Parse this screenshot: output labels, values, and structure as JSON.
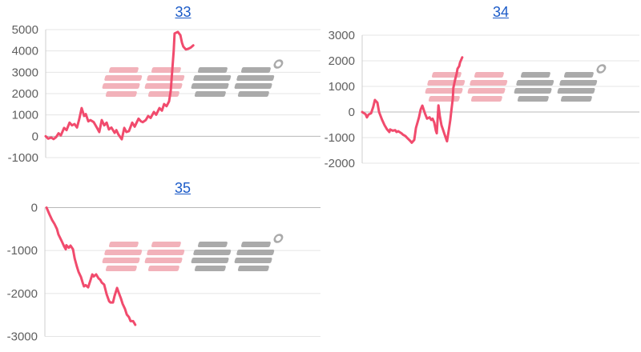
{
  "watermark": {
    "text": "みんレポ",
    "text_pink": "みん",
    "text_gray": "レポ"
  },
  "colors": {
    "line": "#f14b6d",
    "title_link": "#1a5ac8",
    "axis_label": "#5f5f5f",
    "gridline": "#e4e4e4",
    "zero_line": "#b8b8b8",
    "axis_line": "#cfcfcf",
    "watermark_pink": "#f2aeb7",
    "watermark_gray": "#a6a6a6",
    "background": "#ffffff"
  },
  "chart_data": [
    {
      "type": "line",
      "title": "33",
      "xlabel": "",
      "ylabel": "",
      "ylim": [
        -1000,
        5000
      ],
      "yticks": [
        5000,
        4000,
        3000,
        2000,
        1000,
        0,
        -1000
      ],
      "grid": true,
      "x_axis_labels": "none",
      "x_note": "x values normalized 0-1 across plot width; series ends at ~53% of axis",
      "series": [
        {
          "name": "payout-line",
          "points": [
            [
              0,
              0
            ],
            [
              0.009,
              -110
            ],
            [
              0.02,
              -60
            ],
            [
              0.029,
              -130
            ],
            [
              0.038,
              -40
            ],
            [
              0.047,
              140
            ],
            [
              0.055,
              40
            ],
            [
              0.067,
              390
            ],
            [
              0.076,
              290
            ],
            [
              0.087,
              640
            ],
            [
              0.096,
              510
            ],
            [
              0.105,
              570
            ],
            [
              0.114,
              410
            ],
            [
              0.122,
              790
            ],
            [
              0.131,
              1320
            ],
            [
              0.14,
              950
            ],
            [
              0.146,
              1040
            ],
            [
              0.155,
              700
            ],
            [
              0.163,
              760
            ],
            [
              0.175,
              660
            ],
            [
              0.187,
              390
            ],
            [
              0.195,
              200
            ],
            [
              0.204,
              760
            ],
            [
              0.213,
              510
            ],
            [
              0.222,
              640
            ],
            [
              0.23,
              320
            ],
            [
              0.239,
              410
            ],
            [
              0.251,
              160
            ],
            [
              0.257,
              290
            ],
            [
              0.265,
              75
            ],
            [
              0.277,
              -140
            ],
            [
              0.286,
              390
            ],
            [
              0.294,
              200
            ],
            [
              0.303,
              240
            ],
            [
              0.315,
              640
            ],
            [
              0.324,
              450
            ],
            [
              0.338,
              825
            ],
            [
              0.347,
              700
            ],
            [
              0.353,
              660
            ],
            [
              0.364,
              760
            ],
            [
              0.373,
              950
            ],
            [
              0.382,
              860
            ],
            [
              0.394,
              1140
            ],
            [
              0.402,
              1010
            ],
            [
              0.414,
              1320
            ],
            [
              0.423,
              1200
            ],
            [
              0.431,
              1510
            ],
            [
              0.44,
              1410
            ],
            [
              0.449,
              1635
            ],
            [
              0.455,
              2140
            ],
            [
              0.466,
              4010
            ],
            [
              0.469,
              4820
            ],
            [
              0.481,
              4890
            ],
            [
              0.49,
              4740
            ],
            [
              0.496,
              4390
            ],
            [
              0.501,
              4200
            ],
            [
              0.51,
              4070
            ],
            [
              0.519,
              4100
            ],
            [
              0.528,
              4160
            ],
            [
              0.537,
              4260
            ]
          ]
        }
      ]
    },
    {
      "type": "line",
      "title": "34",
      "xlabel": "",
      "ylabel": "",
      "ylim": [
        -2000,
        3000
      ],
      "yticks": [
        3000,
        2000,
        1000,
        0,
        -1000,
        -2000
      ],
      "grid": true,
      "x_axis_labels": "none",
      "x_note": "x values normalized 0-1 across plot width; series ends at ~36% of axis",
      "series": [
        {
          "name": "payout-line",
          "points": [
            [
              0,
              0
            ],
            [
              0.012,
              -85
            ],
            [
              0.017,
              -210
            ],
            [
              0.023,
              -100
            ],
            [
              0.032,
              -50
            ],
            [
              0.04,
              200
            ],
            [
              0.046,
              470
            ],
            [
              0.055,
              365
            ],
            [
              0.061,
              0
            ],
            [
              0.072,
              -310
            ],
            [
              0.081,
              -520
            ],
            [
              0.09,
              -680
            ],
            [
              0.098,
              -780
            ],
            [
              0.101,
              -680
            ],
            [
              0.11,
              -730
            ],
            [
              0.119,
              -710
            ],
            [
              0.124,
              -780
            ],
            [
              0.13,
              -750
            ],
            [
              0.142,
              -830
            ],
            [
              0.147,
              -885
            ],
            [
              0.156,
              -940
            ],
            [
              0.165,
              -1040
            ],
            [
              0.173,
              -1125
            ],
            [
              0.179,
              -1200
            ],
            [
              0.188,
              -1090
            ],
            [
              0.194,
              -625
            ],
            [
              0.205,
              -210
            ],
            [
              0.211,
              100
            ],
            [
              0.217,
              250
            ],
            [
              0.223,
              50
            ],
            [
              0.228,
              -100
            ],
            [
              0.234,
              -260
            ],
            [
              0.243,
              -210
            ],
            [
              0.249,
              -310
            ],
            [
              0.254,
              -260
            ],
            [
              0.26,
              -415
            ],
            [
              0.266,
              -730
            ],
            [
              0.269,
              -830
            ],
            [
              0.275,
              260
            ],
            [
              0.28,
              -155
            ],
            [
              0.286,
              -520
            ],
            [
              0.292,
              -700
            ],
            [
              0.298,
              -900
            ],
            [
              0.303,
              -1050
            ],
            [
              0.306,
              -1145
            ],
            [
              0.312,
              -730
            ],
            [
              0.318,
              -310
            ],
            [
              0.321,
              0
            ],
            [
              0.327,
              520
            ],
            [
              0.329,
              940
            ],
            [
              0.335,
              1250
            ],
            [
              0.341,
              1510
            ],
            [
              0.344,
              1690
            ],
            [
              0.35,
              1790
            ],
            [
              0.353,
              1930
            ],
            [
              0.361,
              2135
            ]
          ]
        }
      ]
    },
    {
      "type": "line",
      "title": "35",
      "xlabel": "",
      "ylabel": "",
      "ylim": [
        -3000,
        0
      ],
      "yticks": [
        0,
        -1000,
        -2000,
        -3000
      ],
      "grid": true,
      "x_axis_labels": "none",
      "x_note": "x values normalized 0-1 across plot width; series ends at ~33% of axis",
      "series": [
        {
          "name": "payout-line",
          "points": [
            [
              0.006,
              0
            ],
            [
              0.017,
              -160
            ],
            [
              0.026,
              -285
            ],
            [
              0.035,
              -380
            ],
            [
              0.044,
              -500
            ],
            [
              0.049,
              -625
            ],
            [
              0.061,
              -780
            ],
            [
              0.07,
              -905
            ],
            [
              0.076,
              -970
            ],
            [
              0.078,
              -875
            ],
            [
              0.087,
              -935
            ],
            [
              0.093,
              -885
            ],
            [
              0.102,
              -970
            ],
            [
              0.108,
              -1185
            ],
            [
              0.116,
              -1370
            ],
            [
              0.122,
              -1495
            ],
            [
              0.131,
              -1620
            ],
            [
              0.137,
              -1745
            ],
            [
              0.142,
              -1835
            ],
            [
              0.148,
              -1805
            ],
            [
              0.157,
              -1855
            ],
            [
              0.166,
              -1680
            ],
            [
              0.172,
              -1555
            ],
            [
              0.177,
              -1605
            ],
            [
              0.186,
              -1555
            ],
            [
              0.195,
              -1650
            ],
            [
              0.201,
              -1680
            ],
            [
              0.206,
              -1745
            ],
            [
              0.215,
              -1795
            ],
            [
              0.224,
              -2020
            ],
            [
              0.233,
              -2180
            ],
            [
              0.238,
              -2210
            ],
            [
              0.247,
              -2210
            ],
            [
              0.253,
              -2055
            ],
            [
              0.262,
              -1870
            ],
            [
              0.267,
              -1960
            ],
            [
              0.276,
              -2115
            ],
            [
              0.282,
              -2240
            ],
            [
              0.291,
              -2365
            ],
            [
              0.297,
              -2490
            ],
            [
              0.305,
              -2550
            ],
            [
              0.311,
              -2645
            ],
            [
              0.32,
              -2645
            ],
            [
              0.326,
              -2705
            ],
            [
              0.328,
              -2730
            ]
          ]
        }
      ]
    }
  ]
}
